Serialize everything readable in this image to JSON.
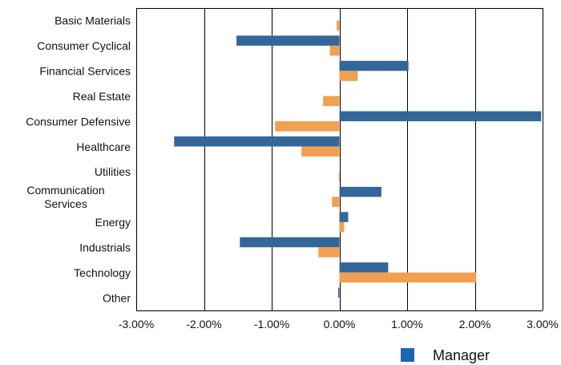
{
  "chart_data": {
    "type": "bar",
    "orientation": "horizontal",
    "categories": [
      [
        "Basic Materials"
      ],
      [
        "Consumer Cyclical"
      ],
      [
        "Financial Services"
      ],
      [
        "Real Estate"
      ],
      [
        "Consumer Defensive"
      ],
      [
        "Healthcare"
      ],
      [
        "Utilities"
      ],
      [
        "Communication",
        "Services"
      ],
      [
        "Energy"
      ],
      [
        "Industrials"
      ],
      [
        "Technology"
      ],
      [
        "Other"
      ]
    ],
    "series": [
      {
        "name": "Manager",
        "color": "#336699",
        "values": [
          0.0,
          -1.52,
          1.02,
          0.0,
          2.98,
          -2.44,
          0.0,
          0.62,
          0.13,
          -1.47,
          0.72,
          -0.02
        ]
      },
      {
        "color": "#f0a050",
        "values": [
          -0.04,
          -0.14,
          0.27,
          -0.24,
          -0.95,
          -0.56,
          -0.01,
          -0.11,
          0.07,
          -0.31,
          2.02,
          0.0
        ]
      }
    ],
    "xlim": [
      -3,
      3
    ],
    "xticks": [
      -3,
      -2,
      -1,
      0,
      1,
      2,
      3
    ],
    "xtick_labels": [
      "-3.00%",
      "-2.00%",
      "-1.00%",
      "0.00%",
      "1.00%",
      "2.00%",
      "3.00%"
    ],
    "grid": "vertical",
    "legend_position": "bottom-right"
  }
}
